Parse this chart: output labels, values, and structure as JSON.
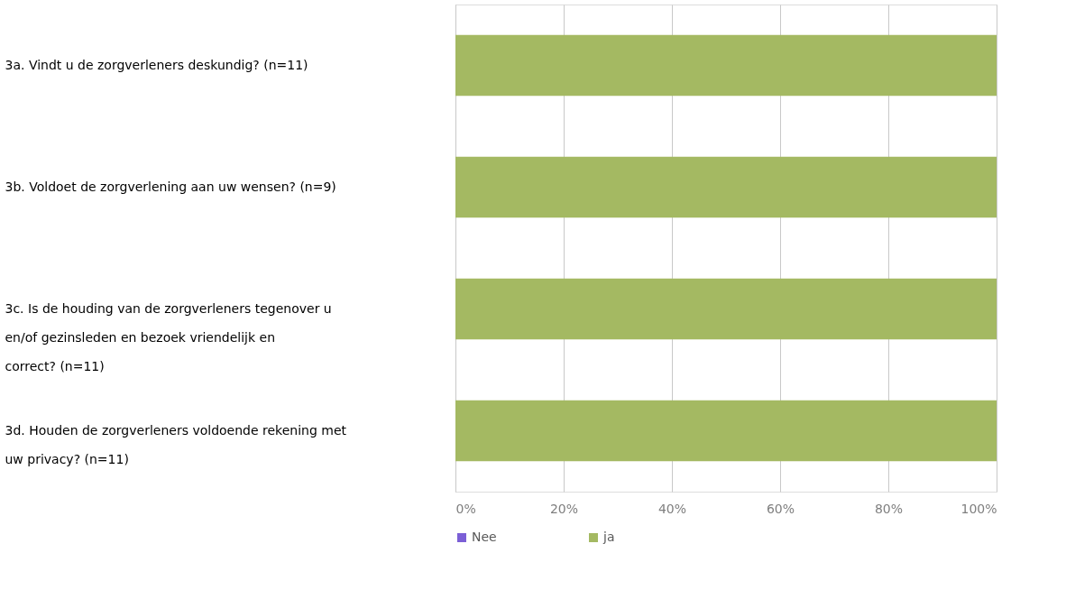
{
  "chart_data": {
    "type": "bar",
    "orientation": "horizontal",
    "stacked": true,
    "categories": [
      "3a. Vindt u de zorgverleners deskundig? (n=11)",
      "3b. Voldoet de zorgverlening aan uw wensen? (n=9)",
      "3c. Is de houding van de zorgverleners tegenover u en/of gezinsleden en bezoek vriendelijk en correct? (n=11)",
      "3d. Houden de zorgverleners voldoende rekening met uw privacy? (n=11)"
    ],
    "series": [
      {
        "name": "Nee",
        "color": "#7b5fd6",
        "values": [
          0,
          0,
          0,
          0
        ]
      },
      {
        "name": "ja",
        "color": "#a4b962",
        "values": [
          100,
          100,
          100,
          100
        ]
      }
    ],
    "xlim": [
      0,
      100
    ],
    "xticks": [
      {
        "value": 0,
        "label": "0%"
      },
      {
        "value": 20,
        "label": "20%"
      },
      {
        "value": 40,
        "label": "40%"
      },
      {
        "value": 60,
        "label": "60%"
      },
      {
        "value": 80,
        "label": "80%"
      },
      {
        "value": 100,
        "label": "100%"
      }
    ],
    "grid": "x",
    "legend": "bottom"
  }
}
